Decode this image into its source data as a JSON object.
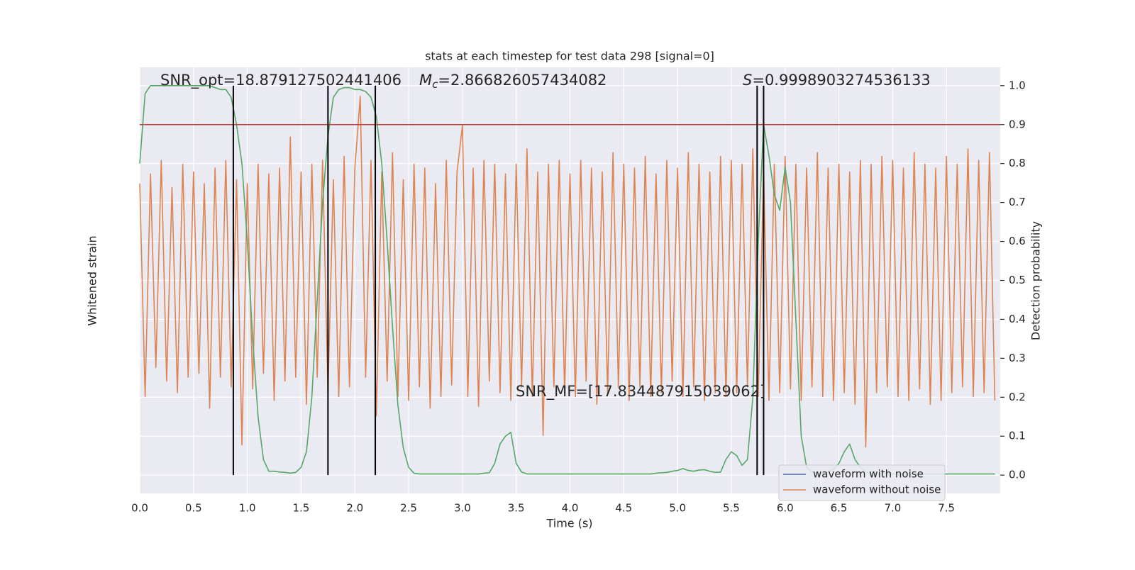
{
  "chart_data": {
    "type": "line",
    "title": "stats at each timestep for test data 298 [signal=0]",
    "xlabel": "Time (s)",
    "ylabel": "Whitened strain",
    "y2label": "Detection probability",
    "xlim": [
      0,
      8.0
    ],
    "xticks": [
      {
        "value": 0,
        "label": "0.0"
      },
      0.5,
      {
        "value": 1,
        "label": "1.0"
      },
      1.5,
      {
        "value": 2,
        "label": "2.0"
      },
      2.5,
      {
        "value": 3,
        "label": "3.0"
      },
      3.5,
      {
        "value": 4,
        "label": "4.0"
      },
      4.5,
      {
        "value": 5,
        "label": "5.0"
      },
      5.5,
      {
        "value": 6,
        "label": "6.0"
      },
      6.5,
      {
        "value": 7,
        "label": "7.0"
      },
      7.5
    ],
    "ylim": [
      -1.1,
      1.1
    ],
    "y2lim": [
      -0.047,
      1.047
    ],
    "y2ticks": [
      {
        "value": 0,
        "label": "0.0"
      },
      0.1,
      0.2,
      0.3,
      0.4,
      0.5,
      0.6,
      0.7,
      0.8,
      0.9,
      {
        "value": 1,
        "label": "1.0"
      }
    ],
    "grid": true,
    "legend": "lower right",
    "background": "#eaeaf2",
    "x": [
      0,
      0.05,
      0.1,
      0.15,
      0.2,
      0.25,
      0.3,
      0.35,
      0.4,
      0.45,
      0.5,
      0.55,
      0.6,
      0.65,
      0.7,
      0.75,
      0.8,
      0.85,
      0.9,
      0.95,
      1.0,
      1.05,
      1.1,
      1.15,
      1.2,
      1.25,
      1.3,
      1.35,
      1.4,
      1.45,
      1.5,
      1.55,
      1.6,
      1.65,
      1.7,
      1.75,
      1.8,
      1.85,
      1.9,
      1.95,
      2.0,
      2.05,
      2.1,
      2.15,
      2.2,
      2.25,
      2.3,
      2.35,
      2.4,
      2.45,
      2.5,
      2.55,
      2.6,
      2.65,
      2.7,
      2.75,
      2.8,
      2.85,
      2.9,
      2.95,
      3.0,
      3.05,
      3.1,
      3.15,
      3.2,
      3.25,
      3.3,
      3.35,
      3.4,
      3.45,
      3.5,
      3.55,
      3.6,
      3.65,
      3.7,
      3.75,
      3.8,
      3.85,
      3.9,
      3.95,
      4.0,
      4.05,
      4.1,
      4.15,
      4.2,
      4.25,
      4.3,
      4.35,
      4.4,
      4.45,
      4.5,
      4.55,
      4.6,
      4.65,
      4.7,
      4.75,
      4.8,
      4.85,
      4.9,
      4.95,
      5.0,
      5.05,
      5.1,
      5.15,
      5.2,
      5.25,
      5.3,
      5.35,
      5.4,
      5.45,
      5.5,
      5.55,
      5.6,
      5.65,
      5.7,
      5.75,
      5.8,
      5.85,
      5.9,
      5.95,
      6.0,
      6.05,
      6.1,
      6.15,
      6.2,
      6.25,
      6.3,
      6.35,
      6.4,
      6.45,
      6.5,
      6.55,
      6.6,
      6.65,
      6.7,
      6.75,
      6.8,
      6.85,
      6.9,
      6.95,
      7.0,
      7.05,
      7.1,
      7.15,
      7.2,
      7.25,
      7.3,
      7.35,
      7.4,
      7.45,
      7.5,
      7.55,
      7.6,
      7.65,
      7.7,
      7.75,
      7.8,
      7.85,
      7.9,
      7.95
    ],
    "series": [
      {
        "name": "waveform with noise",
        "color": "#4c72b0"
      },
      {
        "name": "waveform without noise",
        "color": "#dd8452",
        "values": [
          0.5,
          -0.6,
          0.55,
          -0.45,
          0.62,
          -0.52,
          0.48,
          -0.58,
          0.6,
          -0.5,
          0.56,
          -0.48,
          0.5,
          -0.66,
          0.58,
          -0.5,
          0.62,
          -0.55,
          0.52,
          -0.85,
          0.5,
          -0.56,
          0.6,
          -0.48,
          0.55,
          -0.62,
          0.58,
          -0.52,
          0.74,
          -0.5,
          0.56,
          -0.64,
          0.6,
          -0.5,
          0.62,
          -0.58,
          0.52,
          -0.6,
          0.64,
          -0.55,
          0.58,
          0.95,
          -0.5,
          0.62,
          -0.7,
          0.56,
          -0.52,
          0.66,
          -0.6,
          0.52,
          -0.62,
          0.6,
          -0.55,
          0.58,
          -0.66,
          0.5,
          -0.6,
          0.62,
          -0.54,
          0.56,
          0.8,
          -0.6,
          0.58,
          -0.65,
          0.62,
          -0.52,
          0.6,
          -0.58,
          0.55,
          -0.62,
          0.6,
          -0.55,
          0.68,
          -0.6,
          0.56,
          -0.8,
          0.6,
          -0.55,
          0.62,
          -0.58,
          0.55,
          -0.6,
          0.62,
          -0.52,
          0.58,
          -0.64,
          0.56,
          -0.58,
          0.66,
          -0.55,
          0.6,
          -0.62,
          0.58,
          -0.55,
          0.64,
          -0.6,
          0.55,
          -0.58,
          0.62,
          -0.52,
          0.58,
          -0.6,
          0.66,
          -0.55,
          0.6,
          -0.62,
          0.56,
          -0.58,
          0.64,
          -0.6,
          0.62,
          -0.58,
          0.6,
          -0.55,
          0.68,
          -0.6,
          0.56,
          -0.62,
          0.6,
          -0.58,
          0.64,
          -0.56,
          0.6,
          -0.62,
          0.58,
          -0.55,
          0.66,
          -0.6,
          0.58,
          -0.62,
          0.6,
          -0.58,
          0.56,
          -0.64,
          0.62,
          -0.86,
          0.6,
          -0.58,
          0.64,
          -0.55,
          0.62,
          -0.6,
          0.58,
          -0.62,
          0.66,
          -0.56,
          0.6,
          -0.64,
          0.58,
          -0.62,
          0.64,
          -0.58,
          0.6,
          -0.55,
          0.68,
          -0.6,
          0.62,
          -0.58,
          0.66,
          -0.62
        ]
      },
      {
        "color": "#55a868",
        "axis": "y2",
        "values": [
          0.8,
          0.98,
          1.0,
          1.0,
          1.0,
          1.0,
          1.0,
          1.0,
          1.0,
          1.0,
          1.0,
          1.0,
          1.0,
          1.0,
          0.995,
          0.99,
          0.99,
          0.97,
          0.9,
          0.8,
          0.6,
          0.35,
          0.15,
          0.04,
          0.01,
          0.01,
          0.008,
          0.007,
          0.005,
          0.007,
          0.02,
          0.06,
          0.2,
          0.45,
          0.7,
          0.87,
          0.97,
          0.99,
          0.995,
          0.995,
          0.99,
          0.99,
          0.985,
          0.97,
          0.92,
          0.8,
          0.6,
          0.38,
          0.18,
          0.07,
          0.02,
          0.005,
          0.003,
          0.003,
          0.003,
          0.003,
          0.003,
          0.003,
          0.003,
          0.003,
          0.003,
          0.003,
          0.003,
          0.003,
          0.005,
          0.006,
          0.03,
          0.08,
          0.1,
          0.11,
          0.03,
          0.008,
          0.003,
          0.003,
          0.003,
          0.003,
          0.003,
          0.003,
          0.003,
          0.003,
          0.003,
          0.003,
          0.003,
          0.003,
          0.003,
          0.003,
          0.003,
          0.003,
          0.003,
          0.003,
          0.003,
          0.003,
          0.003,
          0.003,
          0.003,
          0.003,
          0.005,
          0.006,
          0.007,
          0.01,
          0.012,
          0.017,
          0.012,
          0.01,
          0.013,
          0.014,
          0.01,
          0.007,
          0.008,
          0.04,
          0.06,
          0.05,
          0.025,
          0.04,
          0.2,
          0.6,
          0.9,
          0.82,
          0.72,
          0.68,
          0.79,
          0.7,
          0.4,
          0.1,
          0.02,
          0.008,
          0.005,
          0.005,
          0.01,
          0.015,
          0.03,
          0.06,
          0.08,
          0.04,
          0.02,
          0.008,
          0.003,
          0.003,
          0.003,
          0.003,
          0.003,
          0.003,
          0.003,
          0.003,
          0.003,
          0.003,
          0.003,
          0.003,
          0.003,
          0.003,
          0.003,
          0.003,
          0.003,
          0.003,
          0.003,
          0.003,
          0.003,
          0.003,
          0.003,
          0.003
        ]
      }
    ],
    "hlines": [
      {
        "y": 0.9,
        "axis": "y2",
        "color": "#c03d3e"
      }
    ],
    "vlines": [
      {
        "x": 0.87
      },
      {
        "x": 1.75
      },
      {
        "x": 2.19
      },
      {
        "x": 5.74
      },
      {
        "x": 5.8
      }
    ],
    "vline_span": [
      0,
      1
    ],
    "vline_color": "#000000",
    "annotations": [
      {
        "text": "SNR_opt=18.879127502441406"
      },
      {
        "symbol": "M",
        "subscript": "c",
        "text": "=2.866826057434082"
      },
      {
        "symbol": "S",
        "text": "=0.9998903274536133"
      },
      {
        "text": "SNR_MF=[17.834487915039062]"
      }
    ]
  }
}
